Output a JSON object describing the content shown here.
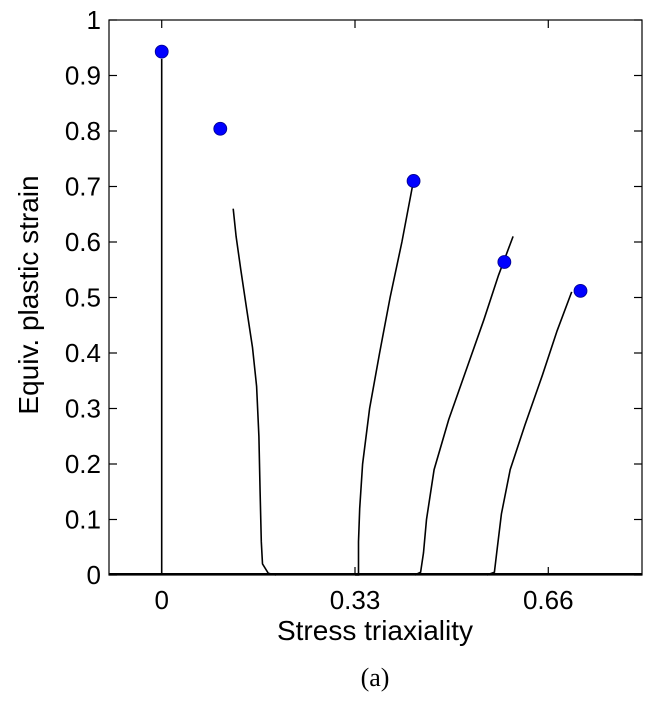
{
  "caption": "(a)",
  "chart_data": {
    "type": "line",
    "xlabel": "Stress triaxiality",
    "ylabel": "Equiv. plastic strain",
    "xlim": [
      -0.09,
      0.82
    ],
    "ylim": [
      0,
      1
    ],
    "xticks": [
      0,
      0.33,
      0.66
    ],
    "xtick_labels": [
      "0",
      "0.33",
      "0.66"
    ],
    "yticks": [
      0,
      0.1,
      0.2,
      0.3,
      0.4,
      0.5,
      0.6,
      0.7,
      0.8,
      0.9,
      1
    ],
    "ytick_labels": [
      "0",
      "0.1",
      "0.2",
      "0.3",
      "0.4",
      "0.5",
      "0.6",
      "0.7",
      "0.8",
      "0.9",
      "1"
    ],
    "grid": false,
    "legend": false,
    "line_color": "#000000",
    "marker_color": "#0000ff",
    "series": [
      {
        "kind": "path",
        "points": [
          [
            0.0,
            0.0
          ],
          [
            0.0,
            0.93
          ]
        ]
      },
      {
        "kind": "path",
        "points": [
          [
            0.195,
            0.0
          ],
          [
            0.182,
            0.003
          ],
          [
            0.172,
            0.02
          ],
          [
            0.17,
            0.06
          ],
          [
            0.168,
            0.15
          ],
          [
            0.166,
            0.25
          ],
          [
            0.162,
            0.34
          ],
          [
            0.155,
            0.41
          ],
          [
            0.145,
            0.48
          ],
          [
            0.135,
            0.55
          ],
          [
            0.127,
            0.61
          ],
          [
            0.122,
            0.66
          ]
        ]
      },
      {
        "kind": "path",
        "points": [
          [
            0.33,
            0.0
          ],
          [
            0.336,
            0.0
          ],
          [
            0.336,
            0.06
          ],
          [
            0.338,
            0.12
          ],
          [
            0.343,
            0.2
          ],
          [
            0.355,
            0.3
          ],
          [
            0.372,
            0.4
          ],
          [
            0.39,
            0.5
          ],
          [
            0.41,
            0.6
          ],
          [
            0.428,
            0.7
          ]
        ]
      },
      {
        "kind": "path",
        "points": [
          [
            0.432,
            0.0
          ],
          [
            0.442,
            0.005
          ],
          [
            0.447,
            0.04
          ],
          [
            0.452,
            0.1
          ],
          [
            0.465,
            0.19
          ],
          [
            0.49,
            0.28
          ],
          [
            0.52,
            0.37
          ],
          [
            0.55,
            0.46
          ],
          [
            0.575,
            0.54
          ],
          [
            0.6,
            0.61
          ]
        ]
      },
      {
        "kind": "path",
        "points": [
          [
            0.555,
            0.0
          ],
          [
            0.568,
            0.005
          ],
          [
            0.572,
            0.04
          ],
          [
            0.58,
            0.11
          ],
          [
            0.595,
            0.19
          ],
          [
            0.62,
            0.27
          ],
          [
            0.65,
            0.36
          ],
          [
            0.675,
            0.44
          ],
          [
            0.7,
            0.51
          ]
        ]
      },
      {
        "kind": "markers",
        "points": [
          [
            0.0,
            0.943
          ],
          [
            0.1,
            0.804
          ],
          [
            0.43,
            0.71
          ],
          [
            0.585,
            0.564
          ],
          [
            0.715,
            0.512
          ]
        ]
      }
    ]
  }
}
